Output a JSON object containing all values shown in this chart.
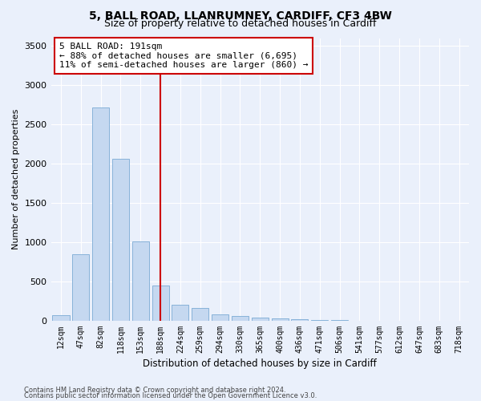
{
  "title1": "5, BALL ROAD, LLANRUMNEY, CARDIFF, CF3 4BW",
  "title2": "Size of property relative to detached houses in Cardiff",
  "xlabel": "Distribution of detached houses by size in Cardiff",
  "ylabel": "Number of detached properties",
  "bar_labels": [
    "12sqm",
    "47sqm",
    "82sqm",
    "118sqm",
    "153sqm",
    "188sqm",
    "224sqm",
    "259sqm",
    "294sqm",
    "330sqm",
    "365sqm",
    "400sqm",
    "436sqm",
    "471sqm",
    "506sqm",
    "541sqm",
    "577sqm",
    "612sqm",
    "647sqm",
    "683sqm",
    "718sqm"
  ],
  "bar_values": [
    75,
    850,
    2720,
    2060,
    1010,
    450,
    200,
    160,
    80,
    65,
    45,
    30,
    20,
    10,
    5,
    3,
    2,
    1,
    1,
    0,
    0
  ],
  "bar_color": "#c5d8f0",
  "bar_edge_color": "#7aaad4",
  "vline_x": 5,
  "vline_color": "#cc0000",
  "annotation_line1": "5 BALL ROAD: 191sqm",
  "annotation_line2": "← 88% of detached houses are smaller (6,695)",
  "annotation_line3": "11% of semi-detached houses are larger (860) →",
  "annotation_box_color": "#ffffff",
  "annotation_box_edge": "#cc0000",
  "ylim": [
    0,
    3600
  ],
  "yticks": [
    0,
    500,
    1000,
    1500,
    2000,
    2500,
    3000,
    3500
  ],
  "background_color": "#eaf0fb",
  "plot_bg_color": "#eaf0fb",
  "grid_color": "#ffffff",
  "footer1": "Contains HM Land Registry data © Crown copyright and database right 2024.",
  "footer2": "Contains public sector information licensed under the Open Government Licence v3.0."
}
